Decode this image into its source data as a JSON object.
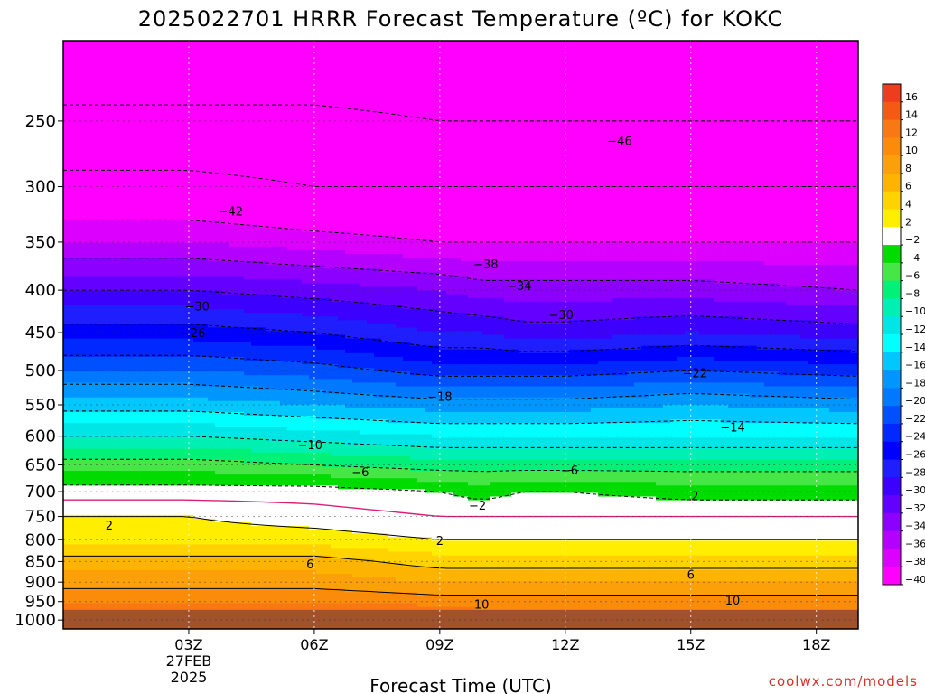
{
  "chart_data": {
    "type": "heatmap",
    "title": "2025022701 HRRR Forecast Temperature (ºC) for KOKC",
    "xlabel": "Forecast Time (UTC)",
    "ylabel": "",
    "x_range_hours_utc": [
      0.0,
      19.0
    ],
    "y_range_hpa": [
      200,
      1025
    ],
    "y_scale": "log",
    "y_ticks": [
      250,
      300,
      350,
      400,
      450,
      500,
      550,
      600,
      650,
      700,
      750,
      800,
      850,
      900,
      950,
      1000
    ],
    "x_ticks": [
      {
        "hour": 3,
        "label": "03Z",
        "sub": [
          "27FEB",
          "2025"
        ]
      },
      {
        "hour": 6,
        "label": "06Z"
      },
      {
        "hour": 9,
        "label": "09Z"
      },
      {
        "hour": 12,
        "label": "12Z"
      },
      {
        "hour": 15,
        "label": "15Z"
      },
      {
        "hour": 18,
        "label": "18Z"
      }
    ],
    "grid": true,
    "legend": "right colorbar",
    "colorbar_labels": [
      16,
      14,
      12,
      10,
      8,
      6,
      4,
      2,
      -2,
      -4,
      -6,
      -8,
      -10,
      -12,
      -14,
      -16,
      -18,
      -20,
      -22,
      -24,
      -26,
      -28,
      -30,
      -32,
      -34,
      -36,
      -38,
      -40
    ],
    "color_levels": [
      {
        "min": 16,
        "color": "#f03c1e"
      },
      {
        "min": 14,
        "color": "#f55a14"
      },
      {
        "min": 12,
        "color": "#f87814"
      },
      {
        "min": 10,
        "color": "#fa8c0a"
      },
      {
        "min": 8,
        "color": "#fca00a"
      },
      {
        "min": 6,
        "color": "#fdb400"
      },
      {
        "min": 4,
        "color": "#ffd200"
      },
      {
        "min": 2,
        "color": "#ffee00"
      },
      {
        "min": -2,
        "color": "#ffffff"
      },
      {
        "min": -4,
        "color": "#00dc00"
      },
      {
        "min": -6,
        "color": "#46e646"
      },
      {
        "min": -8,
        "color": "#00f078"
      },
      {
        "min": -10,
        "color": "#00f0b4"
      },
      {
        "min": -12,
        "color": "#00e6e6"
      },
      {
        "min": -14,
        "color": "#00ffff"
      },
      {
        "min": -16,
        "color": "#00c8ff"
      },
      {
        "min": -18,
        "color": "#0096ff"
      },
      {
        "min": -20,
        "color": "#0078ff"
      },
      {
        "min": -22,
        "color": "#0050ff"
      },
      {
        "min": -24,
        "color": "#0028ff"
      },
      {
        "min": -26,
        "color": "#0000ff"
      },
      {
        "min": -28,
        "color": "#1e1eff"
      },
      {
        "min": -30,
        "color": "#3c00ff"
      },
      {
        "min": -32,
        "color": "#6400ff"
      },
      {
        "min": -34,
        "color": "#8c00ff"
      },
      {
        "min": -36,
        "color": "#b400ff"
      },
      {
        "min": -38,
        "color": "#dc00ff"
      },
      {
        "min": -999,
        "color": "#ff00ff"
      }
    ],
    "terrain_color": "#a0522d",
    "surface_pressure_hpa": 972,
    "freezing_line_color": "#dc1e78",
    "profile": {
      "hours": [
        0,
        3,
        6,
        9,
        10,
        11,
        12,
        15,
        19
      ],
      "pressure_hpa": [
        200,
        250,
        300,
        350,
        400,
        450,
        500,
        550,
        600,
        650,
        700,
        750,
        800,
        850,
        900,
        950,
        972
      ],
      "temps_c": [
        [
          -50,
          -45,
          -41,
          -36,
          -30,
          -25,
          -20,
          -15,
          -10,
          -5,
          -1,
          2,
          3,
          7,
          9,
          12,
          14
        ],
        [
          -50,
          -45,
          -41,
          -36,
          -30,
          -25,
          -20,
          -15,
          -10,
          -5,
          -1,
          2,
          3,
          7,
          9,
          12,
          14
        ],
        [
          -50,
          -45,
          -42,
          -37,
          -31,
          -26,
          -21,
          -16,
          -11,
          -6,
          -1,
          1,
          3,
          7,
          9,
          12,
          14
        ],
        [
          -50,
          -46,
          -42,
          -38,
          -32,
          -28,
          -23,
          -17,
          -12,
          -7,
          -2,
          0,
          2,
          5,
          8,
          11,
          13
        ],
        [
          -50,
          -46,
          -42,
          -38,
          -33,
          -28,
          -23,
          -17,
          -12,
          -7,
          -3,
          0,
          2,
          5,
          8,
          11,
          12
        ],
        [
          -50,
          -46,
          -42,
          -38,
          -33,
          -29,
          -23,
          -17,
          -12,
          -7,
          -2,
          0,
          2,
          5,
          8,
          11,
          12
        ],
        [
          -50,
          -46,
          -42,
          -38,
          -33,
          -29,
          -23,
          -17,
          -12,
          -7,
          -2,
          0,
          2,
          5,
          8,
          11,
          12
        ],
        [
          -50,
          -46,
          -42,
          -38,
          -33,
          -28,
          -22,
          -16,
          -12,
          -7,
          -3,
          0,
          2,
          5,
          8,
          11,
          12
        ],
        [
          -50,
          -46,
          -42,
          -38,
          -34,
          -29,
          -23,
          -17,
          -12,
          -7,
          -3,
          0,
          2,
          5,
          8,
          11,
          12
        ]
      ]
    },
    "contour_labels": [
      {
        "text": "-46",
        "hour": 13.3,
        "p": 264
      },
      {
        "text": "-42",
        "hour": 4.0,
        "p": 321
      },
      {
        "text": "-38",
        "hour": 10.1,
        "p": 372
      },
      {
        "text": "-34",
        "hour": 10.9,
        "p": 395
      },
      {
        "text": "-30",
        "hour": 3.2,
        "p": 418
      },
      {
        "text": "-30",
        "hour": 11.9,
        "p": 428
      },
      {
        "text": "-26",
        "hour": 3.1,
        "p": 450
      },
      {
        "text": "-22",
        "hour": 15.1,
        "p": 503
      },
      {
        "text": "-18",
        "hour": 9.0,
        "p": 537
      },
      {
        "text": "-14",
        "hour": 16.0,
        "p": 585
      },
      {
        "text": "-10",
        "hour": 5.9,
        "p": 614
      },
      {
        "text": "-6",
        "hour": 7.1,
        "p": 662
      },
      {
        "text": "-6",
        "hour": 12.1,
        "p": 659
      },
      {
        "text": "-2",
        "hour": 9.9,
        "p": 727
      },
      {
        "text": "2",
        "hour": 15.1,
        "p": 708
      },
      {
        "text": "2",
        "hour": 1.1,
        "p": 768
      },
      {
        "text": "2",
        "hour": 9.0,
        "p": 801
      },
      {
        "text": "6",
        "hour": 5.9,
        "p": 856
      },
      {
        "text": "6",
        "hour": 15.0,
        "p": 881
      },
      {
        "text": "10",
        "hour": 10.0,
        "p": 957
      },
      {
        "text": "10",
        "hour": 16.0,
        "p": 946
      }
    ]
  },
  "watermark": "coolwx.com/models"
}
